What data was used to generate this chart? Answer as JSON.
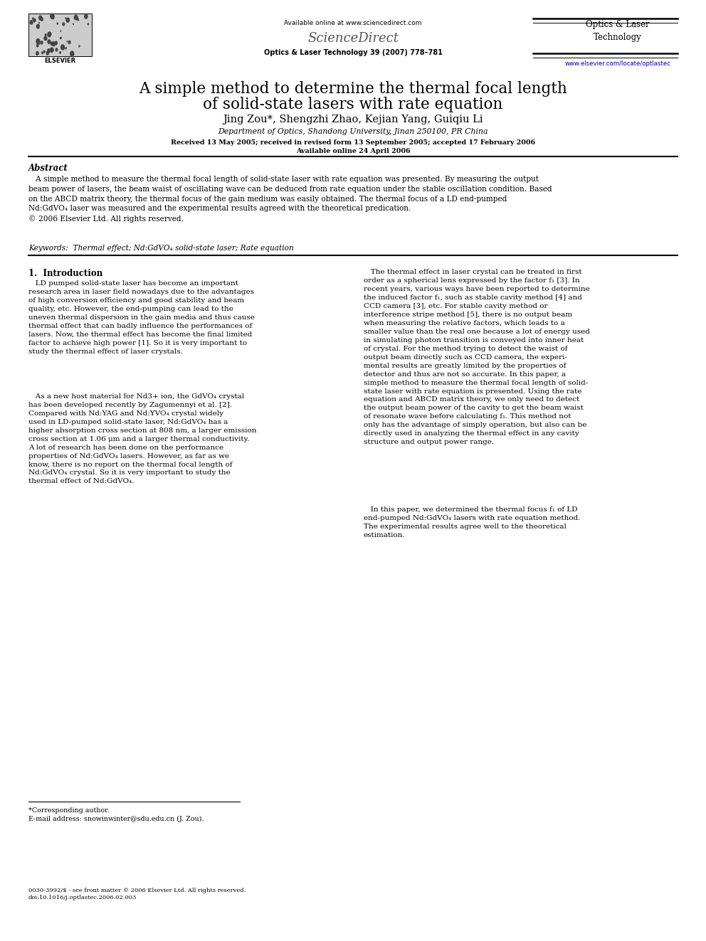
{
  "bg_color": "#ffffff",
  "page_width": 9.92,
  "page_height": 13.23,
  "header_available": "Available online at www.sciencedirect.com",
  "header_sciencedirect": "ScienceDirect",
  "header_journal": "Optics & Laser\nTechnology",
  "header_journal_info": "Optics & Laser Technology 39 (2007) 778–781",
  "header_url": "www.elsevier.com/locate/optlastec",
  "header_elsevier": "ELSEVIER",
  "title_line1": "A simple method to determine the thermal focal length",
  "title_line2": "of solid-state lasers with rate equation",
  "authors": "Jing Zou*, Shengzhi Zhao, Kejian Yang, Guiqiu Li",
  "affiliation": "Department of Optics, Shandong University, Jinan 250100, PR China",
  "received_line1": "Received 13 May 2005; received in revised form 13 September 2005; accepted 17 February 2006",
  "received_line2": "Available online 24 April 2006",
  "abstract_title": "Abstract",
  "abstract_body": "   A simple method to measure the thermal focal length of solid-state laser with rate equation was presented. By measuring the output\nbeam power of lasers, the beam waist of oscillating wave can be deduced from rate equation under the stable oscillation condition. Based\non the ABCD matrix theory, the thermal focus of the gain medium was easily obtained. The thermal focus of a LD end-pumped\nNd:GdVO₄ laser was measured and the experimental results agreed with the theoretical predication.\n© 2006 Elsevier Ltd. All rights reserved.",
  "keywords": "Keywords:  Thermal effect; Nd:GdVO₄ solid-state laser; Rate equation",
  "sec1_title": "1.  Introduction",
  "col1_para1": "   LD pumped solid-state laser has become an important\nresearch area in laser field nowadays due to the advantages\nof high conversion efficiency and good stability and beam\nquality, etc. However, the end-pumping can lead to the\nuneven thermal dispersion in the gain media and thus cause\nthermal effect that can badly influence the performances of\nlasers. Now, the thermal effect has become the final limited\nfactor to achieve high power [1]. So it is very important to\nstudy the thermal effect of laser crystals.",
  "col1_para2": "   As a new host material for Nd3+ ion, the GdVO₄ crystal\nhas been developed recently by Zagumennyi et al. [2].\nCompared with Nd:YAG and Nd:YVO₄ crystal widely\nused in LD-pumped solid-state laser, Nd:GdVO₄ has a\nhigher absorption cross section at 808 nm, a larger emission\ncross section at 1.06 μm and a larger thermal conductivity.\nA lot of research has been done on the performance\nproperties of Nd:GdVO₄ lasers. However, as far as we\nknow, there is no report on the thermal focal length of\nNd:GdVO₄ crystal. So it is very important to study the\nthermal effect of Nd:GdVO₄.",
  "col2_para1": "   The thermal effect in laser crystal can be treated in first\norder as a spherical lens expressed by the factor f₁ [3]. In\nrecent years, various ways have been reported to determine\nthe induced factor f₁, such as stable cavity method [4] and\nCCD camera [3], etc. For stable cavity method or\ninterference stripe method [5], there is no output beam\nwhen measuring the relative factors, which leads to a\nsmaller value than the real one because a lot of energy used\nin simulating photon transition is conveyed into inner heat\nof crystal. For the method trying to detect the waist of\noutput beam directly such as CCD camera, the experi-\nmental results are greatly limited by the properties of\ndetector and thus are not so accurate. In this paper, a\nsimple method to measure the thermal focal length of solid-\nstate laser with rate equation is presented. Using the rate\nequation and ABCD matrix theory, we only need to detect\nthe output beam power of the cavity to get the beam waist\nof resonate wave before calculating f₁. This method not\nonly has the advantage of simply operation, but also can be\ndirectly used in analyzing the thermal effect in any cavity\nstructure and output power range.",
  "col2_para2": "   In this paper, we determined the thermal focus f₁ of LD\nend-pumped Nd:GdVO₄ lasers with rate equation method.\nThe experimental results agree well to the theoretical\nestimation.",
  "footnote1": "*Corresponding author.",
  "footnote2": "E-mail address: snowinwinter@sdu.edu.cn (J. Zou).",
  "footer": "0030-3992/$ - see front matter © 2006 Elsevier Ltd. All rights reserved.\ndoi:10.1016/j.optlastec.2006.02.003"
}
